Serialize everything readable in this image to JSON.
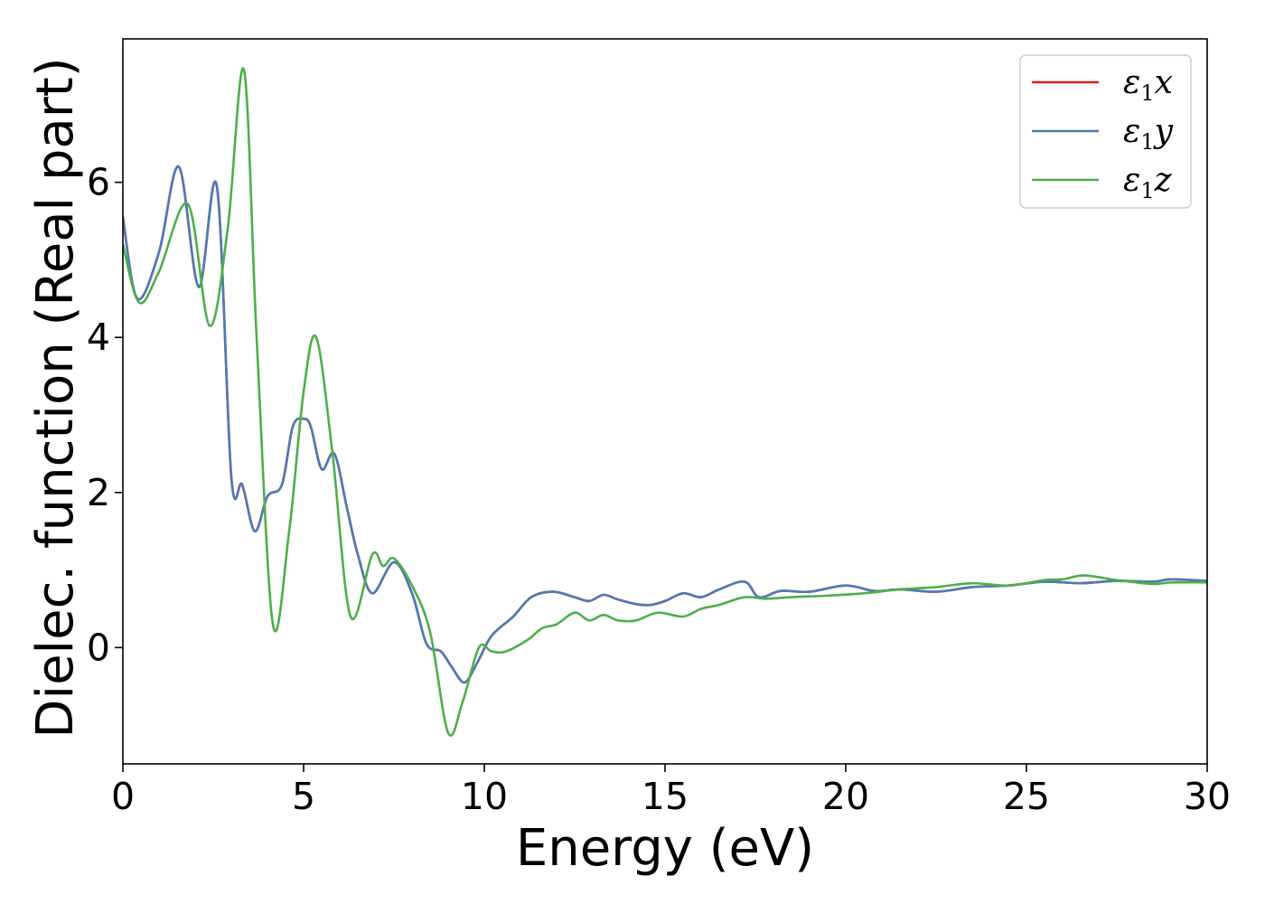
{
  "chart_data": {
    "type": "line",
    "title": "",
    "xlabel": "Energy (eV)",
    "ylabel": "Dielec. function (Real part)",
    "xlim": [
      0,
      30
    ],
    "ylim": [
      -1.5,
      7.85
    ],
    "xticks": [
      0,
      5,
      10,
      15,
      20,
      25,
      30
    ],
    "xtick_labels": [
      "0",
      "5",
      "10",
      "15",
      "20",
      "25",
      "30"
    ],
    "yticks": [
      0,
      2,
      4,
      6
    ],
    "ytick_labels": [
      "0",
      "2",
      "4",
      "6"
    ],
    "grid": false,
    "legend_position": "top-right",
    "series": [
      {
        "name": "ε1x",
        "legend_main": "ε",
        "legend_sub": "1",
        "legend_suffix": "x",
        "color": "#e41a1c",
        "x": [
          0,
          0.4,
          1.0,
          1.55,
          2.1,
          2.6,
          3.0,
          3.3,
          3.65,
          4.0,
          4.4,
          4.7,
          5.0,
          5.2,
          5.5,
          5.85,
          6.2,
          6.5,
          6.9,
          7.5,
          8.0,
          8.4,
          8.8,
          9.1,
          9.45,
          9.8,
          10.2,
          10.8,
          11.3,
          11.9,
          12.5,
          12.9,
          13.3,
          13.7,
          14.2,
          14.6,
          15.0,
          15.5,
          16.0,
          16.5,
          17.2,
          17.6,
          18.2,
          19.0,
          20.0,
          20.8,
          21.5,
          22.5,
          23.5,
          24.5,
          25.5,
          26.5,
          27.5,
          28.5,
          29.0,
          30.0
        ],
        "y": [
          5.55,
          4.5,
          5.1,
          6.2,
          4.65,
          5.95,
          2.2,
          2.1,
          1.5,
          1.95,
          2.1,
          2.85,
          2.95,
          2.85,
          2.3,
          2.5,
          1.8,
          1.2,
          0.7,
          1.1,
          0.7,
          0.05,
          -0.05,
          -0.25,
          -0.45,
          -0.2,
          0.15,
          0.4,
          0.65,
          0.72,
          0.65,
          0.6,
          0.68,
          0.62,
          0.56,
          0.55,
          0.6,
          0.7,
          0.65,
          0.75,
          0.85,
          0.65,
          0.73,
          0.72,
          0.8,
          0.73,
          0.75,
          0.72,
          0.78,
          0.8,
          0.85,
          0.83,
          0.86,
          0.85,
          0.88,
          0.86
        ]
      },
      {
        "name": "ε1y",
        "legend_main": "ε",
        "legend_sub": "1",
        "legend_suffix": "y",
        "color": "#4c7bb5",
        "x": [
          0,
          0.4,
          1.0,
          1.55,
          2.1,
          2.6,
          3.0,
          3.3,
          3.65,
          4.0,
          4.4,
          4.7,
          5.0,
          5.2,
          5.5,
          5.85,
          6.2,
          6.5,
          6.9,
          7.5,
          8.0,
          8.4,
          8.8,
          9.1,
          9.45,
          9.8,
          10.2,
          10.8,
          11.3,
          11.9,
          12.5,
          12.9,
          13.3,
          13.7,
          14.2,
          14.6,
          15.0,
          15.5,
          16.0,
          16.5,
          17.2,
          17.6,
          18.2,
          19.0,
          20.0,
          20.8,
          21.5,
          22.5,
          23.5,
          24.5,
          25.5,
          26.5,
          27.5,
          28.5,
          29.0,
          30.0
        ],
        "y": [
          5.55,
          4.5,
          5.1,
          6.2,
          4.65,
          5.95,
          2.2,
          2.1,
          1.5,
          1.95,
          2.1,
          2.85,
          2.95,
          2.85,
          2.3,
          2.5,
          1.8,
          1.2,
          0.7,
          1.1,
          0.7,
          0.05,
          -0.05,
          -0.25,
          -0.45,
          -0.2,
          0.15,
          0.4,
          0.65,
          0.72,
          0.65,
          0.6,
          0.68,
          0.62,
          0.56,
          0.55,
          0.6,
          0.7,
          0.65,
          0.75,
          0.85,
          0.65,
          0.73,
          0.72,
          0.8,
          0.73,
          0.75,
          0.72,
          0.78,
          0.8,
          0.85,
          0.83,
          0.86,
          0.85,
          0.88,
          0.86
        ]
      },
      {
        "name": "ε1z",
        "legend_main": "ε",
        "legend_sub": "1",
        "legend_suffix": "z",
        "color": "#4daf4a",
        "x": [
          0,
          0.45,
          1.0,
          1.8,
          2.4,
          2.9,
          3.35,
          3.7,
          4.15,
          4.6,
          5.0,
          5.35,
          5.8,
          6.3,
          6.9,
          7.2,
          7.5,
          8.0,
          8.5,
          9.0,
          9.4,
          9.85,
          10.2,
          10.6,
          11.2,
          11.6,
          12.0,
          12.5,
          12.9,
          13.3,
          13.7,
          14.2,
          14.8,
          15.5,
          16.0,
          16.5,
          17.2,
          17.8,
          18.5,
          19.5,
          20.5,
          21.5,
          22.5,
          23.5,
          24.5,
          25.5,
          26.0,
          26.6,
          27.5,
          28.5,
          29.0,
          30.0
        ],
        "y": [
          5.2,
          4.45,
          4.85,
          5.72,
          4.15,
          5.4,
          7.45,
          4.0,
          0.3,
          1.5,
          3.3,
          4.0,
          2.5,
          0.4,
          1.2,
          1.05,
          1.15,
          0.8,
          0.2,
          -1.1,
          -0.7,
          0.0,
          -0.05,
          -0.05,
          0.1,
          0.25,
          0.3,
          0.45,
          0.35,
          0.42,
          0.35,
          0.35,
          0.45,
          0.4,
          0.5,
          0.55,
          0.65,
          0.63,
          0.65,
          0.67,
          0.7,
          0.75,
          0.78,
          0.83,
          0.8,
          0.87,
          0.88,
          0.93,
          0.87,
          0.82,
          0.84,
          0.84
        ]
      }
    ]
  }
}
